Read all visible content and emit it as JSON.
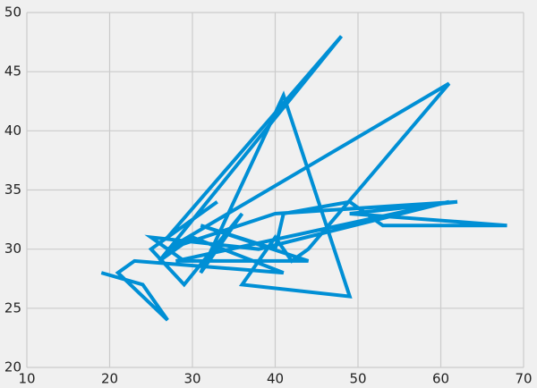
{
  "chart_data": {
    "type": "line",
    "x": [
      19,
      24,
      27,
      21,
      23,
      41,
      30,
      26,
      48,
      27,
      33,
      25,
      29,
      36,
      31,
      41,
      49,
      36,
      40,
      42,
      44,
      61,
      27,
      40,
      62,
      49,
      68,
      53,
      49,
      41,
      40,
      31,
      44,
      28,
      61,
      38,
      25,
      29
    ],
    "series": [
      {
        "color": "#008fd5",
        "values": [
          28,
          27,
          24,
          28,
          29,
          28,
          31,
          29,
          48,
          31,
          34,
          30,
          27,
          33,
          28,
          43,
          26,
          27,
          31,
          29,
          30,
          44,
          30,
          33,
          34,
          33,
          32,
          32,
          34,
          33,
          30,
          32,
          29,
          29,
          34,
          30,
          31,
          29
        ]
      }
    ],
    "xlim": [
      10,
      70
    ],
    "xticks": [
      10,
      20,
      30,
      40,
      50,
      60,
      70
    ],
    "ylim": [
      20,
      50
    ],
    "yticks": [
      20,
      25,
      30,
      35,
      40,
      45,
      50
    ],
    "grid": true
  }
}
